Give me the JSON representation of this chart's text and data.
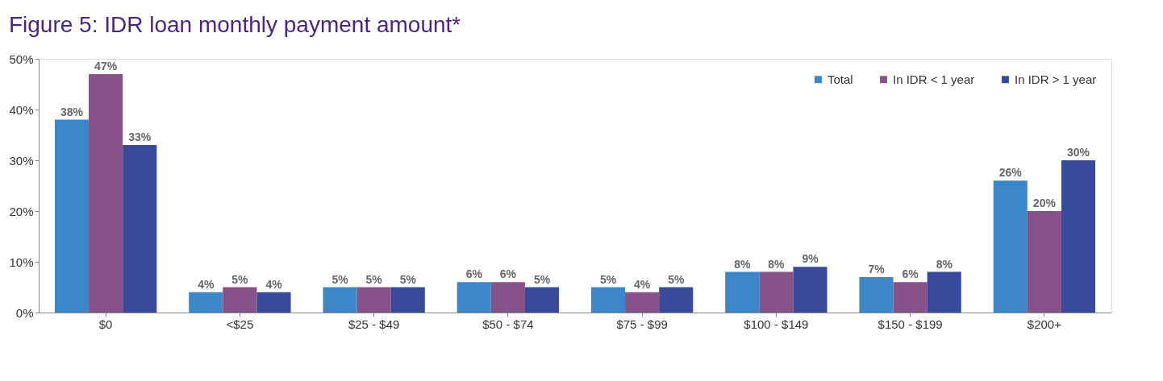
{
  "chart_data": {
    "type": "bar",
    "title": "Figure 5:  IDR loan monthly payment amount*",
    "categories": [
      "$0",
      "<$25",
      "$25 - $49",
      "$50 - $74",
      "$75 - $99",
      "$100 - $149",
      "$150 - $199",
      "$200+"
    ],
    "series": [
      {
        "name": "Total",
        "color": "#3b87c9",
        "values": [
          38,
          4,
          5,
          6,
          5,
          8,
          7,
          26
        ],
        "value_labels": [
          "38%",
          "4%",
          "5%",
          "6%",
          "5%",
          "8%",
          "7%",
          "26%"
        ]
      },
      {
        "name": "In IDR < 1 year",
        "color": "#87528a",
        "values": [
          47,
          5,
          5,
          6,
          4,
          8,
          6,
          20
        ],
        "value_labels": [
          "47%",
          "5%",
          "5%",
          "6%",
          "4%",
          "8%",
          "6%",
          "20%"
        ]
      },
      {
        "name": "In IDR > 1 year",
        "color": "#394a9b",
        "values": [
          33,
          4,
          5,
          5,
          5,
          9,
          8,
          30
        ],
        "value_labels": [
          "33%",
          "4%",
          "5%",
          "5%",
          "5%",
          "9%",
          "8%",
          "30%"
        ]
      }
    ],
    "ylim": [
      0,
      50
    ],
    "yticks": [
      {
        "value": 0,
        "label": "0%"
      },
      {
        "value": 10,
        "label": "10%"
      },
      {
        "value": 20,
        "label": "20%"
      },
      {
        "value": 30,
        "label": "30%"
      },
      {
        "value": 40,
        "label": "40%"
      },
      {
        "value": 50,
        "label": "50%"
      }
    ],
    "grid": false,
    "legend": "top right"
  }
}
